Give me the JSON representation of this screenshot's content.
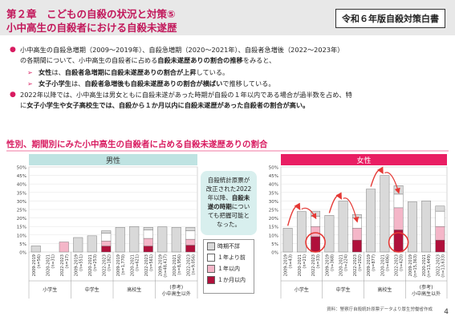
{
  "header": {
    "title_line1": "第２章　こどもの自殺の状況と対策⑤",
    "title_line2": "小中高生の自殺者における自殺未遂歴",
    "badge": "令和６年版自殺対策白書"
  },
  "bullets": {
    "b1_a": "小中高生の自殺急増期（2009～2019年）、自殺急増期（2020～2021年）、自殺者急増後（2022～2023年）",
    "b1_b_plain": "の各期間について、小中高生の自殺者に占める",
    "b1_b_bold": "自殺未遂歴ありの割合の推移",
    "b1_b_end": "をみると、",
    "s1_bold1": "女性",
    "s1_plain": "は、",
    "s1_bold2": "自殺者急増期に自殺未遂歴ありの割合が上昇",
    "s1_end": "している。",
    "s2_bold1": "女子小学生",
    "s2_plain": "は、",
    "s2_bold2": "自殺者急増後も自殺未遂歴ありの割合が横ばい",
    "s2_end": "で推移している。",
    "b2_a": "2022年以降では、小中高生は男女ともに自殺未遂があった時期が自殺の１年以内である場合が過半数を占め、特",
    "b2_b_plain": "に",
    "b2_b_bold": "女子小学生や女子高校生では、自殺から１か月以内に自殺未遂歴があった自殺者の割合が高い。"
  },
  "chart_title": "性別、期間別にみた小中高生の自殺者に占める自殺未遂歴ありの割合",
  "legend": {
    "items": [
      "時期不詳",
      "１年より前",
      "１年以内",
      "１か月以内"
    ],
    "colors": [
      "#d9d9d9",
      "#ffffff",
      "#f4b6c8",
      "#b0103b"
    ]
  },
  "note": {
    "text1": "自殺統計原票が",
    "text2": "改正された2022",
    "text3": "年以降、",
    "text3_bold": "自殺未",
    "text4_bold": "遂の時期",
    "text4": "につい",
    "text5": "ても把握可能と",
    "text6": "なった。"
  },
  "source": "資料：警察庁自殺統計原票データより厚生労働省作成",
  "page_number": "4",
  "chart_data": [
    {
      "type": "bar",
      "title": "男性",
      "ylim": [
        0,
        50
      ],
      "yticks": [
        "0%",
        "5%",
        "10%",
        "15%",
        "20%",
        "25%",
        "30%",
        "35%",
        "40%",
        "45%",
        "50%"
      ],
      "categories": [
        {
          "period": "2009-2019",
          "n": "(n=56)"
        },
        {
          "period": "2020-2021",
          "n": "(n=31)"
        },
        {
          "period": "2022-2023",
          "n": "(n=17)"
        },
        {
          "period": "2009-2019",
          "n": "(n=551)"
        },
        {
          "period": "2020-2021",
          "n": "(n=253)"
        },
        {
          "period": "2022-2023",
          "n": "(n=182)"
        },
        {
          "period": "2009-2019",
          "n": "(n=1,770)"
        },
        {
          "period": "2020-2021",
          "n": "(n=621)"
        },
        {
          "period": "2022-2023",
          "n": "(n=561)"
        },
        {
          "period": "2009-2019",
          "n": "(n=48,417)"
        },
        {
          "period": "2020-2021",
          "n": "(n=8,956)"
        },
        {
          "period": "2022-2023",
          "n": "(n=9,056)"
        }
      ],
      "groups": [
        "小学生",
        "中学生",
        "高校生",
        "(参考)小中高生以外"
      ],
      "series": [
        {
          "name": "時期不詳",
          "values": [
            3.6,
            0,
            0,
            8.5,
            9.5,
            1.5,
            14.5,
            15.0,
            1.5,
            14.8,
            14.5,
            2.0
          ]
        },
        {
          "name": "１年より前",
          "values": [
            0,
            0,
            0,
            0,
            0,
            4.5,
            0,
            0,
            5.0,
            0,
            0,
            5.0
          ]
        },
        {
          "name": "１年以内",
          "values": [
            0,
            0,
            5.9,
            0,
            0,
            3.0,
            0,
            0,
            4.5,
            0,
            0,
            3.5
          ]
        },
        {
          "name": "１か月以内",
          "values": [
            0,
            0,
            0,
            0,
            0,
            3.5,
            0,
            0,
            3.5,
            0,
            0,
            4.0
          ]
        }
      ]
    },
    {
      "type": "bar",
      "title": "女性",
      "ylim": [
        0,
        50
      ],
      "yticks": [
        "0%",
        "5%",
        "10%",
        "15%",
        "20%",
        "25%",
        "30%",
        "35%",
        "40%",
        "45%",
        "50%"
      ],
      "categories": [
        {
          "period": "2009-2019",
          "n": "(n=43)"
        },
        {
          "period": "2020-2021",
          "n": "(n=21)"
        },
        {
          "period": "2022-2023",
          "n": "(n=33)"
        },
        {
          "period": "2009-2019",
          "n": "(n=368)"
        },
        {
          "period": "2020-2021",
          "n": "(n=224)"
        },
        {
          "period": "2022-2023",
          "n": "(n=202)"
        },
        {
          "period": "2009-2019",
          "n": "(n=877)"
        },
        {
          "period": "2020-2021",
          "n": "(n=406)"
        },
        {
          "period": "2022-2023",
          "n": "(n=420)"
        },
        {
          "period": "2009-2019",
          "n": "(n=15,363)"
        },
        {
          "period": "2020-2021",
          "n": "(n=13,449)"
        },
        {
          "period": "2022-2023",
          "n": "(n=13,633)"
        }
      ],
      "groups": [
        "小学生",
        "中学生",
        "高校生",
        "(参考)小中高生以外"
      ],
      "series": [
        {
          "name": "時期不詳",
          "values": [
            14.0,
            23.8,
            3.0,
            21.5,
            30.0,
            2.0,
            37.0,
            45.0,
            5.0,
            29.5,
            30.0,
            3.0
          ]
        },
        {
          "name": "１年より前",
          "values": [
            0,
            0,
            6.0,
            0,
            0,
            6.0,
            0,
            0,
            8.0,
            0,
            0,
            9.0
          ]
        },
        {
          "name": "１年以内",
          "values": [
            0,
            0,
            6.0,
            0,
            0,
            7.0,
            0,
            0,
            13.0,
            0,
            0,
            8.0
          ]
        },
        {
          "name": "１か月以内",
          "values": [
            0,
            0,
            9.0,
            0,
            0,
            7.0,
            0,
            0,
            13.0,
            0,
            0,
            7.0
          ]
        }
      ]
    }
  ]
}
